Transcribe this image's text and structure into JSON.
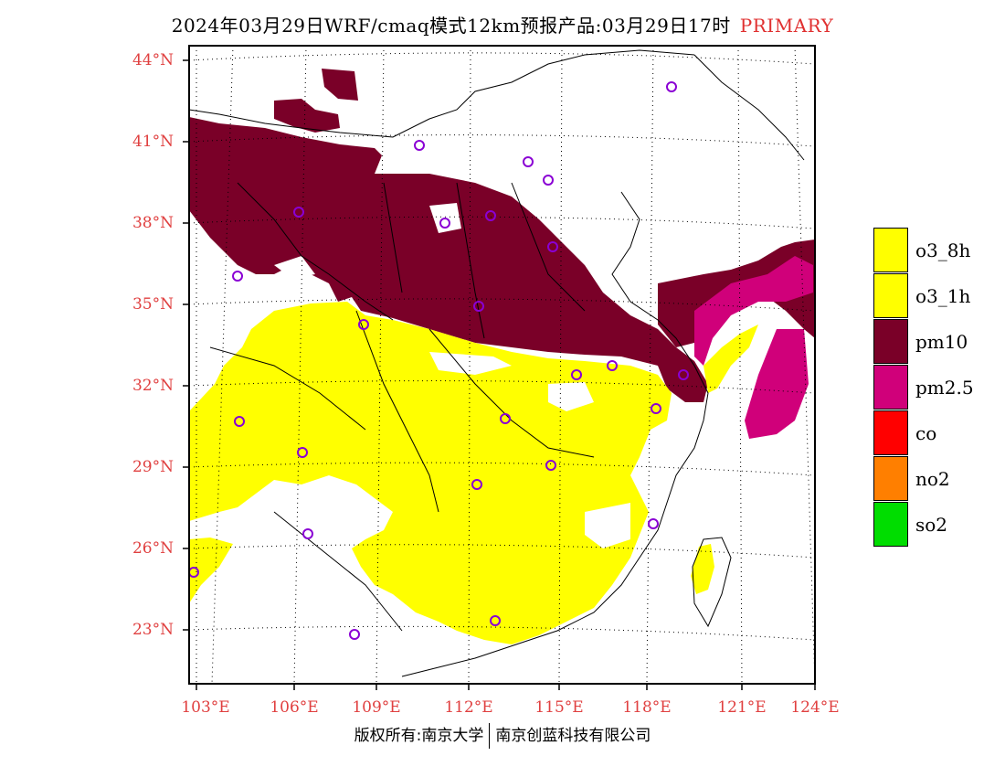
{
  "header": {
    "title": "2024年03月29日WRF/cmaq模式12km预报产品:03月29日17时",
    "tag": "PRIMARY"
  },
  "map": {
    "lat_labels": [
      "44°N",
      "41°N",
      "38°N",
      "35°N",
      "32°N",
      "29°N",
      "26°N",
      "23°N"
    ],
    "lon_labels": [
      "103°E",
      "106°E",
      "109°E",
      "112°E",
      "115°E",
      "118°E",
      "121°E",
      "124°E"
    ]
  },
  "legend": {
    "items": [
      {
        "label": "o3_8h",
        "color": "#ffff00"
      },
      {
        "label": "o3_1h",
        "color": "#ffff00"
      },
      {
        "label": "pm10",
        "color": "#7a0028"
      },
      {
        "label": "pm2.5",
        "color": "#d0007a"
      },
      {
        "label": "co",
        "color": "#ff0000"
      },
      {
        "label": "no2",
        "color": "#ff7f00"
      },
      {
        "label": "so2",
        "color": "#00dd00"
      }
    ]
  },
  "footer": {
    "left": "版权所有:南京大学",
    "right": "南京创蓝科技有限公司"
  }
}
